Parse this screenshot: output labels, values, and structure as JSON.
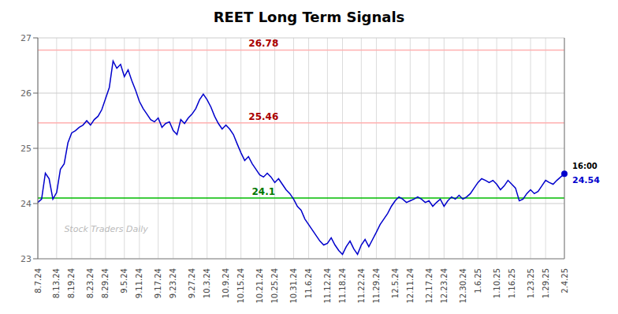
{
  "chart_data": {
    "type": "line",
    "title": "REET Long Term Signals",
    "categories": [
      "8.7.24",
      null,
      null,
      null,
      null,
      "8.13.24",
      null,
      null,
      null,
      "8.19.24",
      null,
      null,
      null,
      null,
      "8.23.24",
      null,
      null,
      null,
      "8.29.24",
      null,
      null,
      null,
      null,
      "9.5.24",
      null,
      null,
      null,
      "9.11.24",
      null,
      null,
      null,
      null,
      "9.17.24",
      null,
      null,
      null,
      "9.23.24",
      null,
      null,
      null,
      null,
      "9.27.24",
      null,
      null,
      null,
      "10.3.24",
      null,
      null,
      null,
      null,
      "10.9.24",
      null,
      null,
      null,
      "10.15.24",
      null,
      null,
      null,
      null,
      "10.21.24",
      null,
      null,
      null,
      "10.25.24",
      null,
      null,
      null,
      null,
      "10.31.24",
      null,
      null,
      null,
      "11.6.24",
      null,
      null,
      null,
      null,
      "11.12.24",
      null,
      null,
      null,
      "11.18.24",
      null,
      null,
      null,
      null,
      "11.22.24",
      null,
      null,
      null,
      "11.29.24",
      null,
      null,
      null,
      null,
      "12.5.24",
      null,
      null,
      null,
      "12.11.24",
      null,
      null,
      null,
      null,
      "12.17.24",
      null,
      null,
      null,
      "12.23.24",
      null,
      null,
      null,
      null,
      "12.30.24",
      null,
      null,
      null,
      "1.6.25",
      null,
      null,
      null,
      null,
      "1.10.25",
      null,
      null,
      null,
      "1.16.25",
      null,
      null,
      null,
      null,
      "1.23.25",
      null,
      null,
      null,
      "1.29.25",
      null,
      null,
      null,
      null,
      "2.4.25"
    ],
    "values": [
      24.02,
      24.08,
      24.55,
      24.45,
      24.08,
      24.2,
      24.62,
      24.72,
      25.1,
      25.28,
      25.32,
      25.38,
      25.42,
      25.5,
      25.42,
      25.52,
      25.58,
      25.7,
      25.9,
      26.1,
      26.58,
      26.45,
      26.52,
      26.3,
      26.42,
      26.22,
      26.05,
      25.85,
      25.72,
      25.62,
      25.52,
      25.48,
      25.55,
      25.38,
      25.45,
      25.48,
      25.32,
      25.25,
      25.52,
      25.45,
      25.55,
      25.62,
      25.72,
      25.88,
      25.98,
      25.88,
      25.75,
      25.58,
      25.45,
      25.35,
      25.42,
      25.35,
      25.25,
      25.08,
      24.92,
      24.78,
      24.85,
      24.72,
      24.62,
      24.52,
      24.48,
      24.55,
      24.48,
      24.38,
      24.45,
      24.35,
      24.25,
      24.18,
      24.08,
      23.95,
      23.88,
      23.72,
      23.62,
      23.52,
      23.42,
      23.32,
      23.25,
      23.28,
      23.38,
      23.25,
      23.15,
      23.08,
      23.22,
      23.32,
      23.18,
      23.08,
      23.25,
      23.35,
      23.22,
      23.35,
      23.48,
      23.62,
      23.72,
      23.82,
      23.95,
      24.05,
      24.12,
      24.08,
      24.02,
      24.05,
      24.08,
      24.12,
      24.08,
      24.02,
      24.05,
      23.95,
      24.02,
      24.08,
      23.95,
      24.05,
      24.12,
      24.08,
      24.15,
      24.08,
      24.12,
      24.18,
      24.28,
      24.38,
      24.45,
      24.42,
      24.38,
      24.42,
      24.35,
      24.25,
      24.32,
      24.42,
      24.35,
      24.28,
      24.05,
      24.08,
      24.18,
      24.25,
      24.18,
      24.22,
      24.32,
      24.42,
      24.38,
      24.35,
      24.42,
      24.48,
      24.54
    ],
    "color": "#0000cc",
    "ylim": [
      23,
      27
    ],
    "yticks": [
      23,
      24,
      25,
      26,
      27
    ],
    "grid": true,
    "hlines": [
      {
        "value": 26.78,
        "color": "#ffb0b0",
        "label_color": "#aa0000"
      },
      {
        "value": 25.46,
        "color": "#ffb0b0",
        "label_color": "#aa0000"
      },
      {
        "value": 24.1,
        "color": "#00bb00",
        "label_color": "#007700"
      }
    ],
    "last_point": {
      "time": "16:00",
      "value": 24.54,
      "color": "#0000cc"
    },
    "watermark": "Stock Traders Daily"
  }
}
